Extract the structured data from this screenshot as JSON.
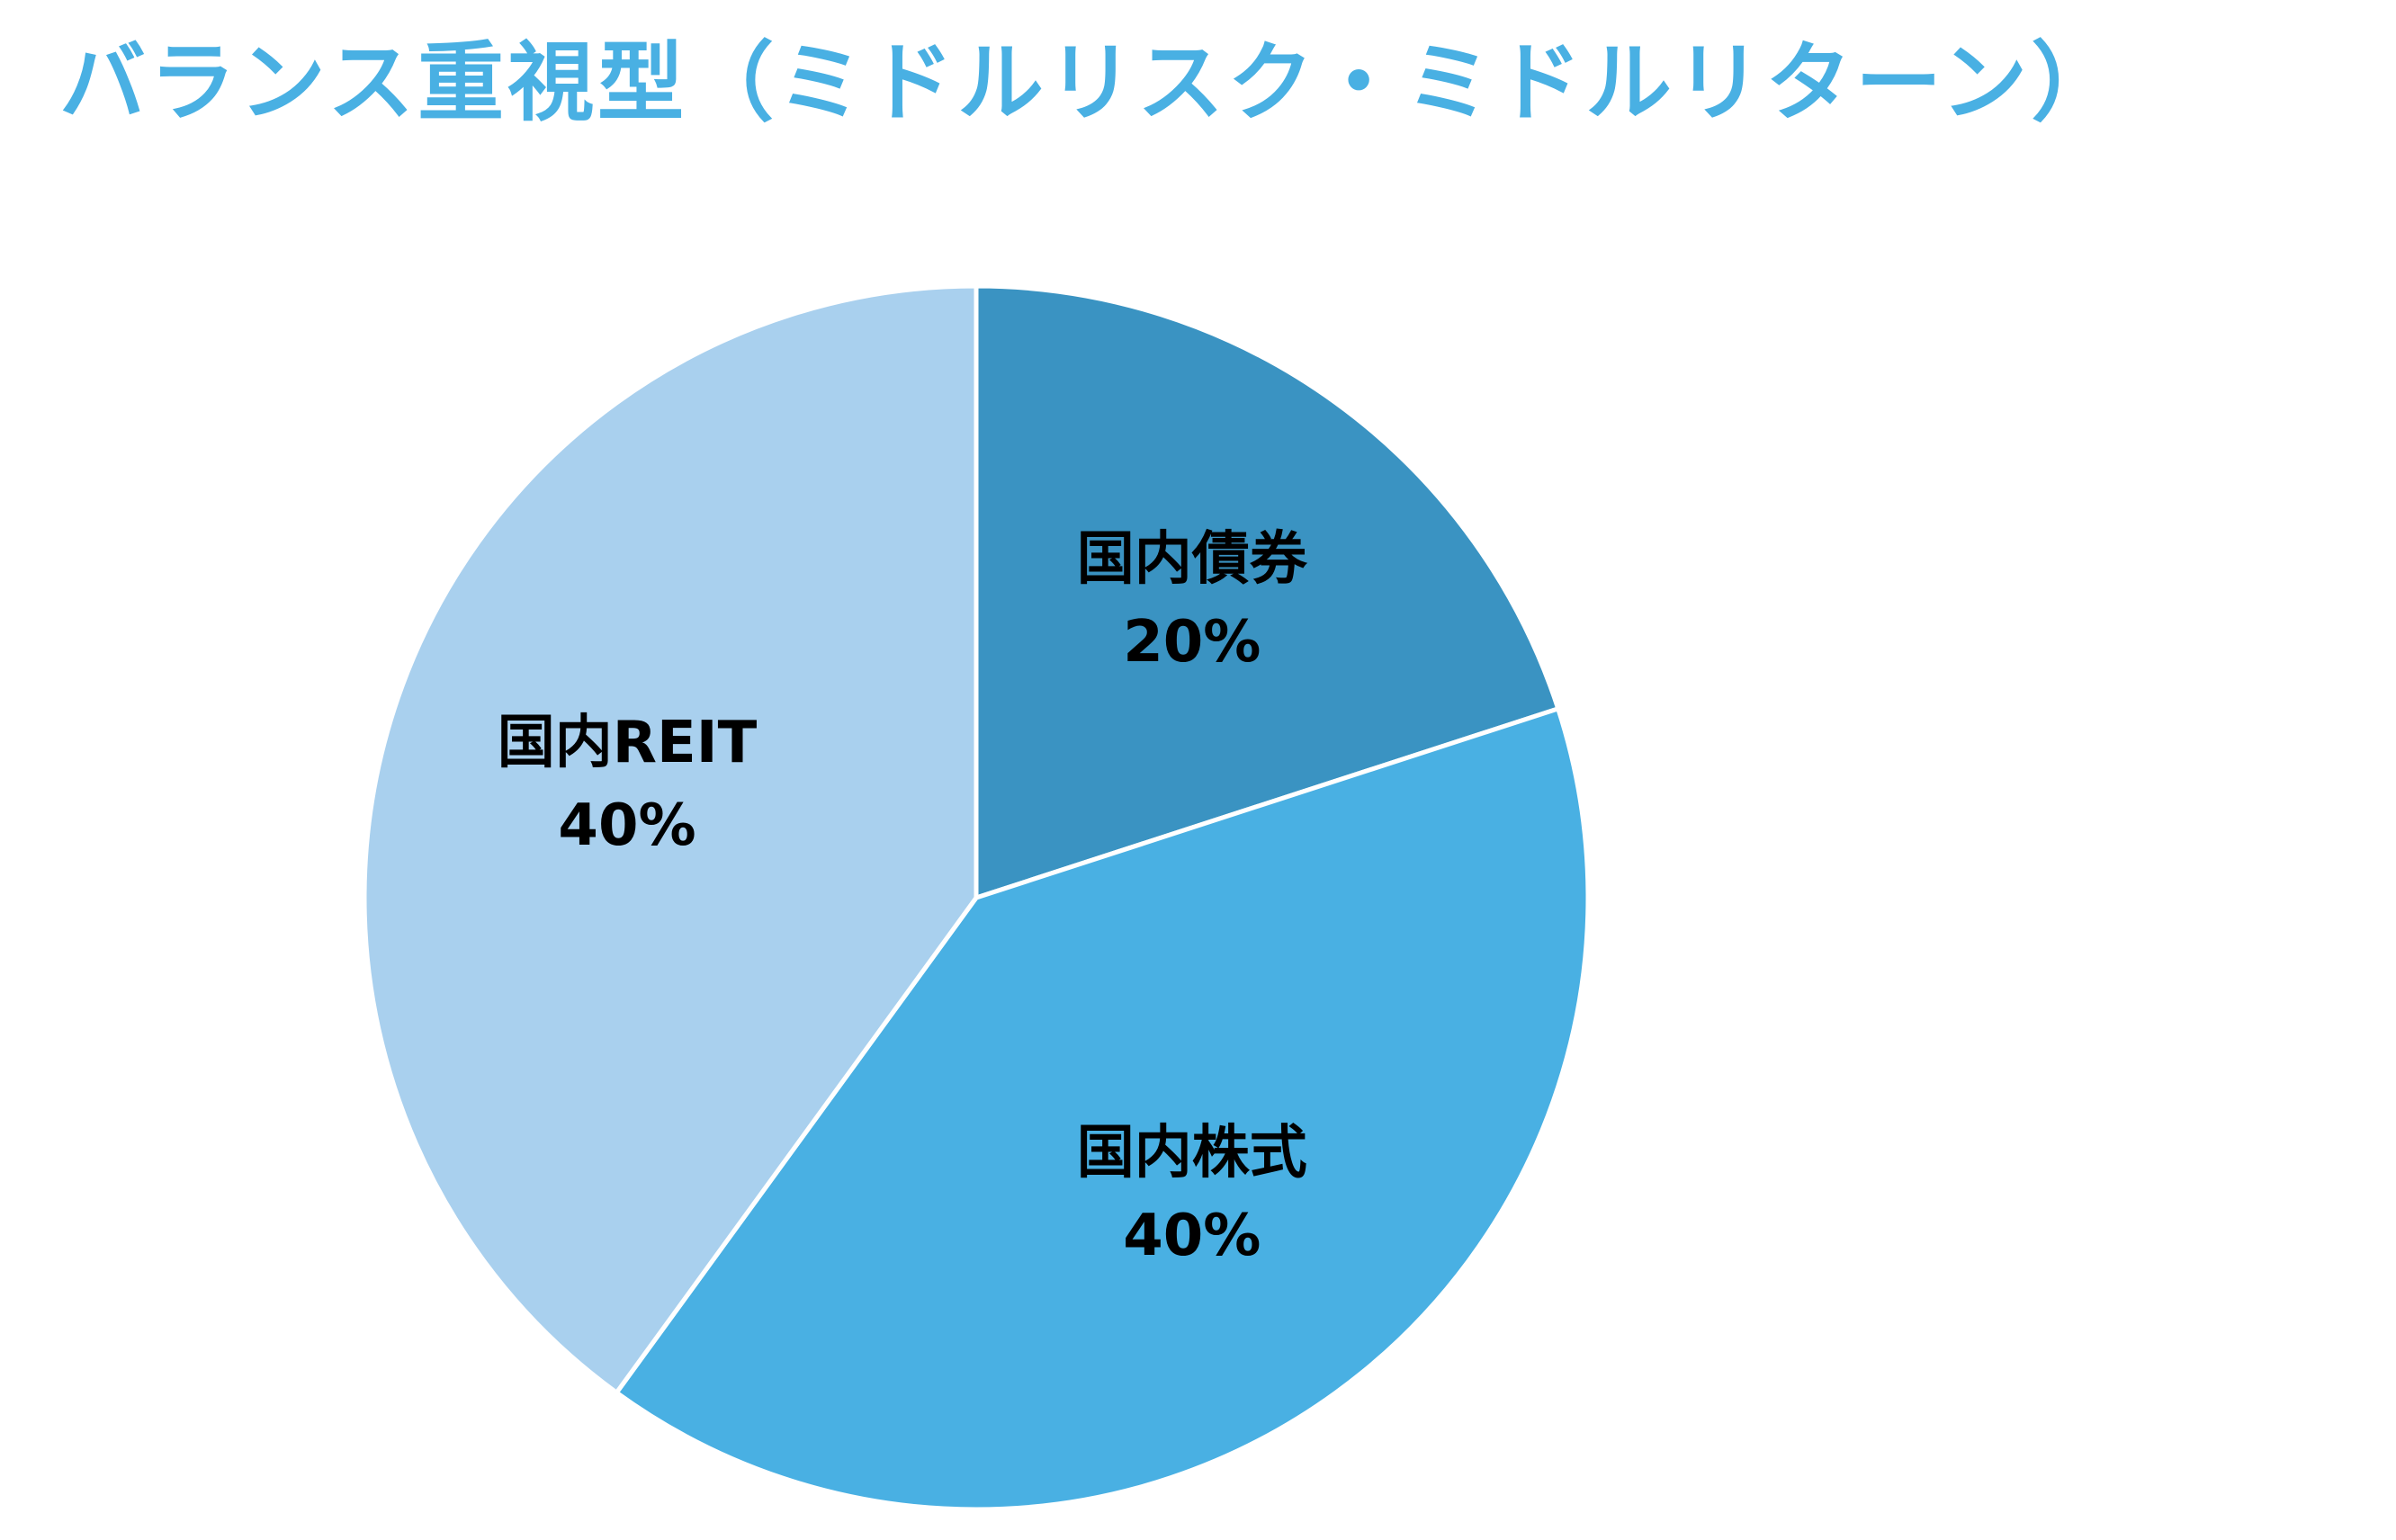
{
  "chart_data": {
    "type": "pie",
    "title": "バランス重視型（ミドルリスク・ミドルリターン）",
    "start_angle": "12 o'clock, clockwise",
    "slices": [
      {
        "name": "国内債券",
        "value": 20,
        "value_label": "20%",
        "color": "#3a93c2"
      },
      {
        "name": "国内株式",
        "value": 40,
        "value_label": "40%",
        "color": "#49b0e3"
      },
      {
        "name": "国内REIT",
        "value": 40,
        "value_label": "40%",
        "color": "#a9d0ee"
      }
    ],
    "slice_border_color": "#ffffff",
    "title_color": "#49b0e3",
    "legend": "none"
  }
}
